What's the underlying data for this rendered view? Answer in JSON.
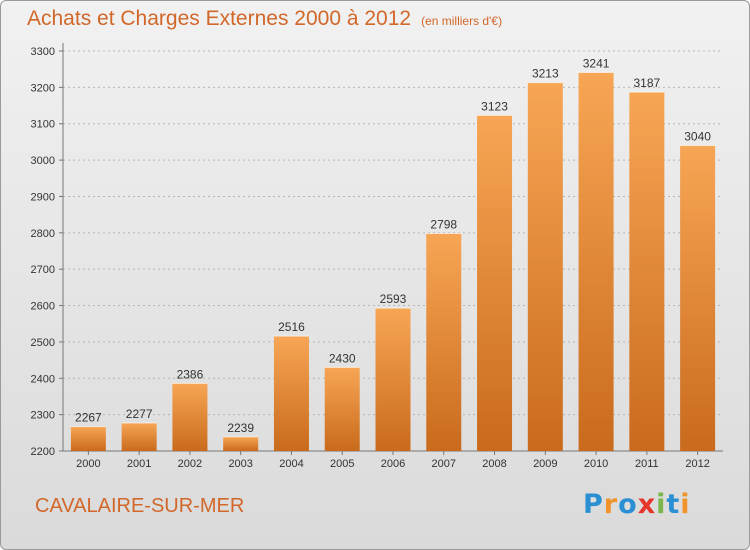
{
  "header": {
    "title": "Achats et Charges Externes 2000 à 2012",
    "unit": "(en milliers d'€)"
  },
  "footer": {
    "city": "CAVALAIRE-SUR-MER",
    "logo": "Proxiti",
    "logo_letters": [
      {
        "ch": "P",
        "color": "#2a8fd3"
      },
      {
        "ch": "r",
        "color": "#f0932b"
      },
      {
        "ch": "o",
        "color": "#2a8fd3"
      },
      {
        "ch": "x",
        "color": "#e6352b"
      },
      {
        "ch": "i",
        "color": "#7ab648"
      },
      {
        "ch": "t",
        "color": "#2a8fd3"
      },
      {
        "ch": "i",
        "color": "#f0932b"
      }
    ]
  },
  "colors": {
    "bar_light": "#f7a655",
    "bar_dark": "#c96a1c",
    "title": "#d2672a",
    "grid": "#b5b5b5"
  },
  "chart_data": {
    "type": "bar",
    "categories": [
      "2000",
      "2001",
      "2002",
      "2003",
      "2004",
      "2005",
      "2006",
      "2007",
      "2008",
      "2009",
      "2010",
      "2011",
      "2012"
    ],
    "values": [
      2267,
      2277,
      2386,
      2239,
      2516,
      2430,
      2593,
      2798,
      3123,
      3213,
      3241,
      3187,
      3040
    ],
    "ylim": [
      2200,
      3300
    ],
    "yticks": [
      2200,
      2300,
      2400,
      2500,
      2600,
      2700,
      2800,
      2900,
      3000,
      3100,
      3200,
      3300
    ],
    "grid": true
  }
}
